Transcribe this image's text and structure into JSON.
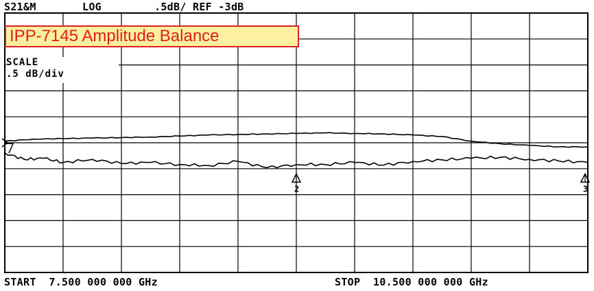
{
  "header": {
    "channel": "S21&M",
    "format": "LOG",
    "scale_ref": ".5dB/ REF -3dB"
  },
  "title_box": "IPP-7145 Amplitude Balance",
  "scale_annotation": {
    "label": "SCALE",
    "value": ".5 dB/div"
  },
  "footer": {
    "start": "START  7.500 000 000 GHz",
    "stop": "STOP  10.500 000 000 GHz"
  },
  "chart_data": {
    "type": "line",
    "title": "IPP-7145 Amplitude Balance",
    "xlim": [
      7.5,
      10.5
    ],
    "x_unit": "GHz",
    "ylim": [
      -5.5,
      -0.5
    ],
    "y_unit": "dB",
    "y_per_div": 0.5,
    "reference": -3,
    "grid": true,
    "divisions": {
      "x": 10,
      "y": 10
    },
    "markers": [
      {
        "label": "2",
        "x": 9.0,
        "y": -3.6
      },
      {
        "label": "3",
        "x": 10.5,
        "y": -3.6
      }
    ],
    "series": [
      {
        "x": [
          7.5,
          7.65,
          7.8,
          7.95,
          8.1,
          8.25,
          8.4,
          8.55,
          8.7,
          8.85,
          9.0,
          9.15,
          9.3,
          9.45,
          9.6,
          9.75,
          9.9,
          10.05,
          10.2,
          10.35,
          10.5
        ],
        "values": [
          -2.97,
          -2.93,
          -2.92,
          -2.91,
          -2.9,
          -2.89,
          -2.87,
          -2.85,
          -2.84,
          -2.83,
          -2.82,
          -2.81,
          -2.82,
          -2.83,
          -2.85,
          -2.88,
          -2.97,
          -3.02,
          -3.05,
          -3.08,
          -3.08
        ]
      },
      {
        "x": [
          7.5,
          7.6,
          7.7,
          7.8,
          7.95,
          8.1,
          8.25,
          8.4,
          8.55,
          8.7,
          8.85,
          9.0,
          9.15,
          9.3,
          9.45,
          9.6,
          9.75,
          9.9,
          10.05,
          10.2,
          10.35,
          10.5
        ],
        "values": [
          -3.2,
          -3.32,
          -3.3,
          -3.38,
          -3.32,
          -3.4,
          -3.38,
          -3.42,
          -3.44,
          -3.36,
          -3.48,
          -3.42,
          -3.42,
          -3.38,
          -3.43,
          -3.36,
          -3.33,
          -3.3,
          -3.28,
          -3.32,
          -3.35,
          -3.38
        ]
      }
    ]
  }
}
